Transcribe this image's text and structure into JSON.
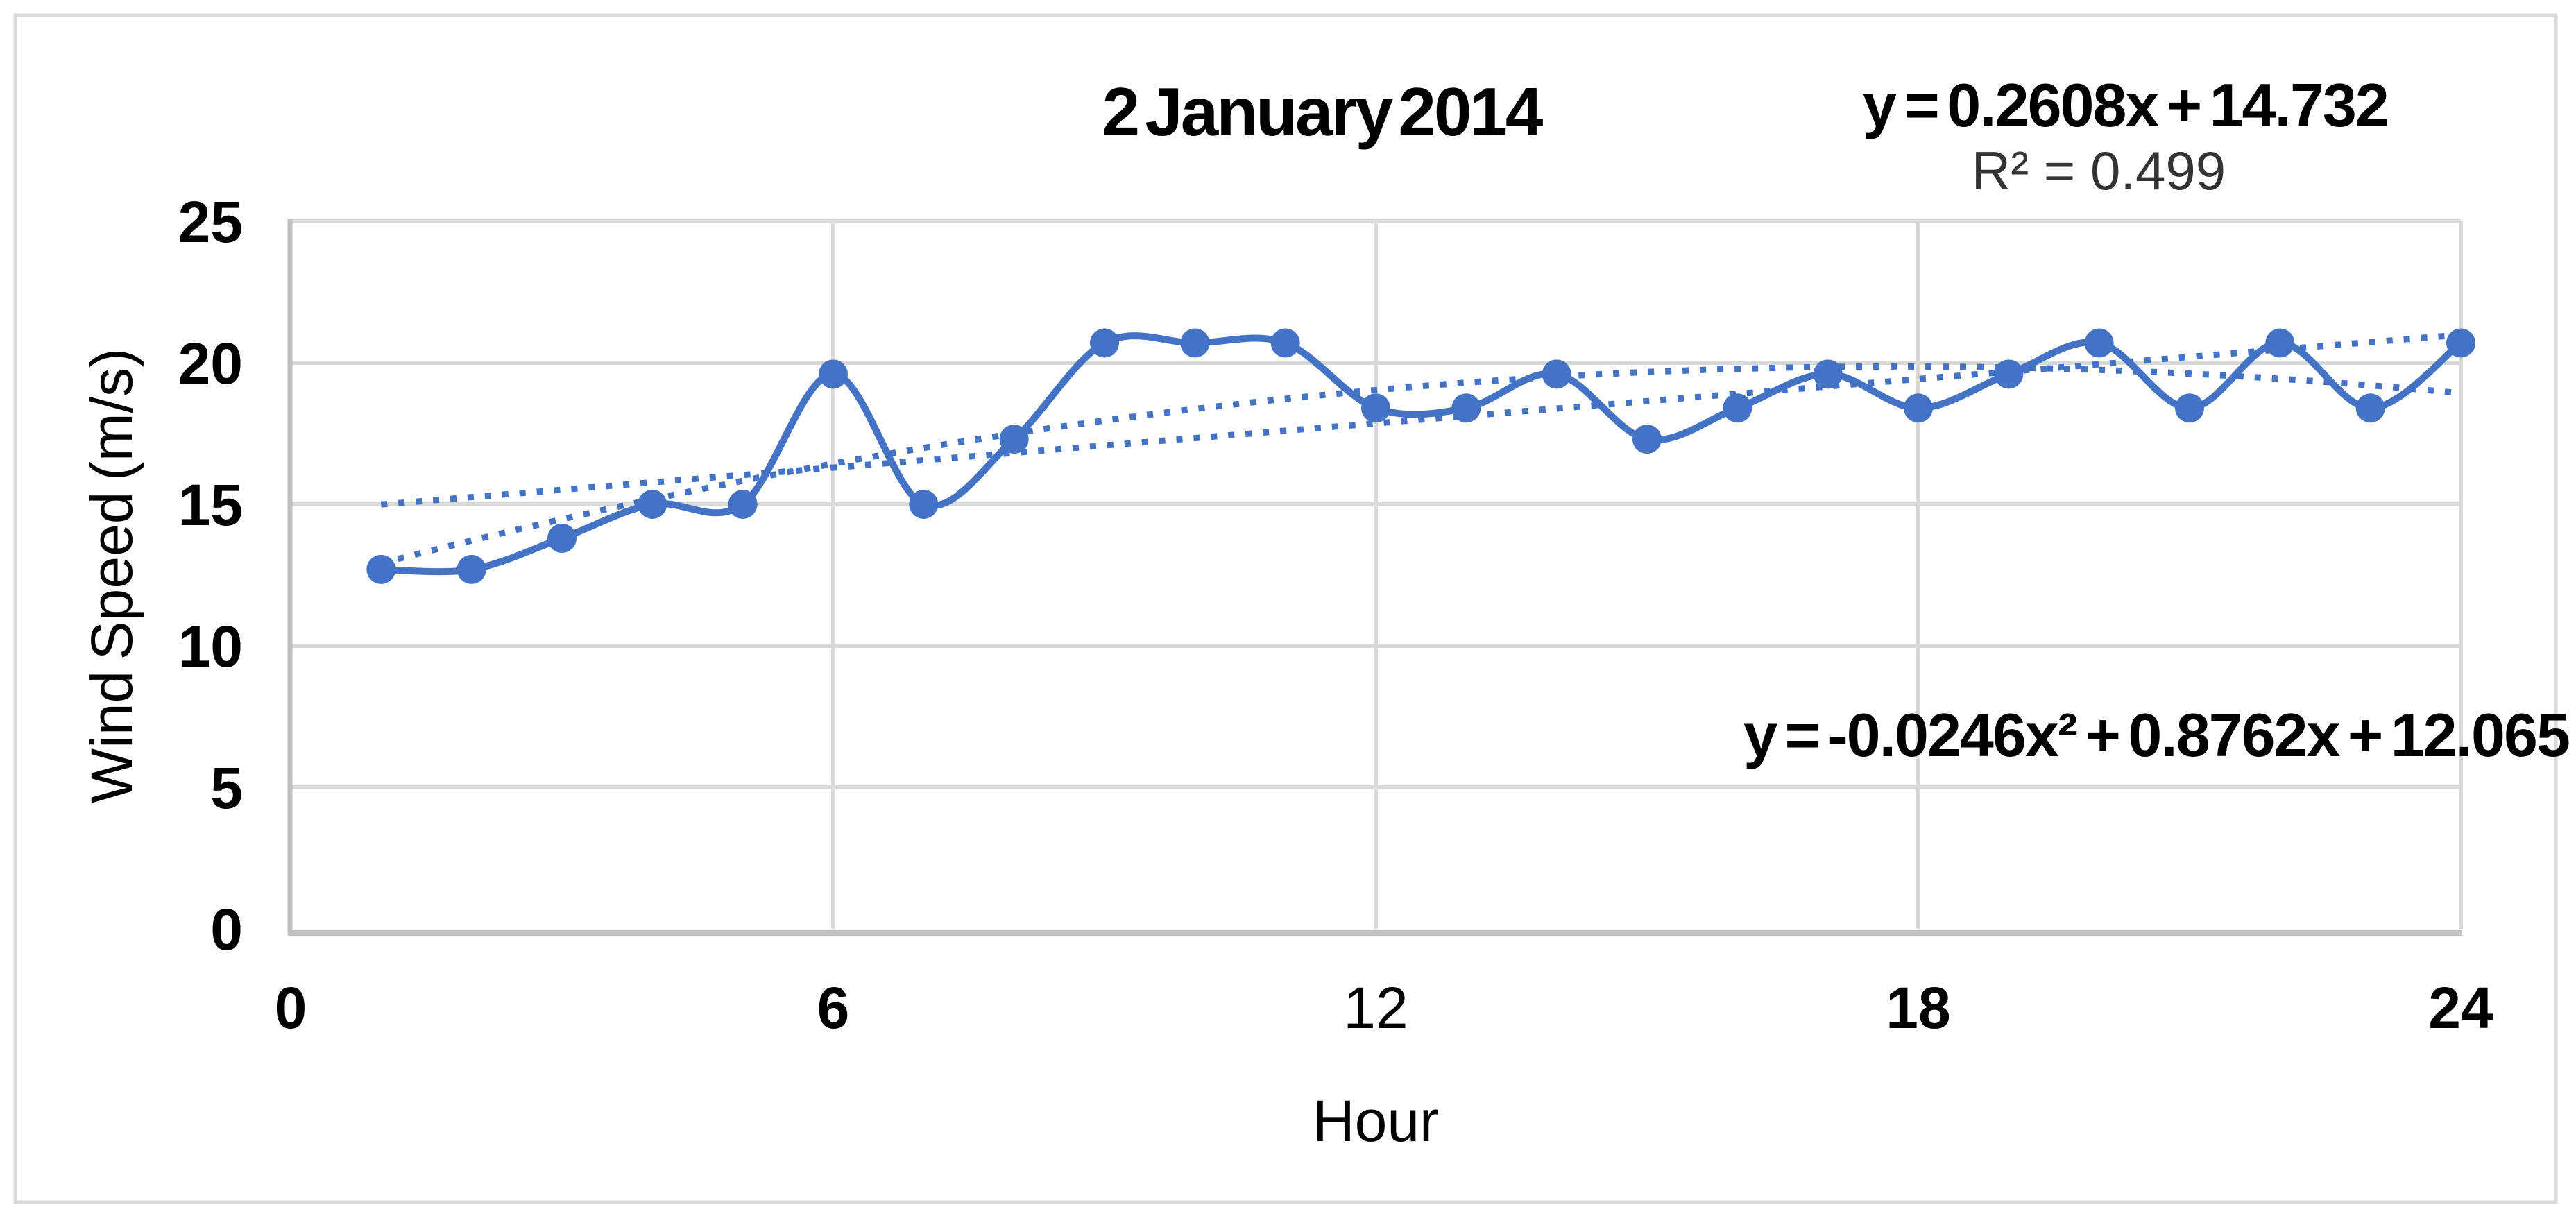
{
  "title": "2 January 2014",
  "annotations": {
    "linear_equation": "y = 0.2608x + 14.732",
    "r_squared": "R² = 0.499",
    "poly_equation": "y = -0.0246x² + 0.8762x + 12.065"
  },
  "chart_data": {
    "type": "line",
    "title": "2 January 2014",
    "xlabel": "Hour",
    "ylabel": "Wind Speed (m/s)",
    "x": [
      1,
      2,
      3,
      4,
      5,
      6,
      7,
      8,
      9,
      10,
      11,
      12,
      13,
      14,
      15,
      16,
      17,
      18,
      19,
      20,
      21,
      22,
      23,
      24
    ],
    "series": [
      {
        "name": "Wind Speed",
        "values": [
          12.7,
          12.7,
          13.8,
          15.0,
          15.0,
          19.6,
          15.0,
          17.3,
          20.7,
          20.7,
          20.7,
          18.4,
          18.4,
          19.6,
          17.3,
          18.4,
          19.6,
          18.4,
          19.6,
          20.7,
          18.4,
          20.7,
          18.4,
          20.7
        ],
        "smooth": true,
        "markers": true
      }
    ],
    "xlim": [
      0,
      24
    ],
    "ylim": [
      0,
      25
    ],
    "xticks": [
      0,
      6,
      12,
      18,
      24
    ],
    "xtick_weights": [
      "bold",
      "bold",
      "normal",
      "bold",
      "bold"
    ],
    "yticks": [
      0,
      5,
      10,
      15,
      20,
      25
    ],
    "grid": true,
    "legend": "none",
    "trendlines": [
      {
        "type": "linear",
        "slope": 0.2608,
        "intercept": 14.732,
        "r2": 0.499,
        "label": "y = 0.2608x + 14.732",
        "range": [
          1,
          24
        ],
        "style": "dotted"
      },
      {
        "type": "polynomial",
        "a": -0.0246,
        "b": 0.8762,
        "c": 12.065,
        "label": "y = -0.0246x² + 0.8762x + 12.065",
        "range": [
          1,
          24
        ],
        "style": "dotted"
      }
    ],
    "colors": {
      "series": "#4472C4",
      "trendline": "#4472C4",
      "gridline": "#D9D9D9",
      "axis": "#C0C0C0",
      "figure_border": "#D9D9D9",
      "title_text": "#000000",
      "tick_text": "#000000",
      "r2_text": "#333333"
    }
  }
}
